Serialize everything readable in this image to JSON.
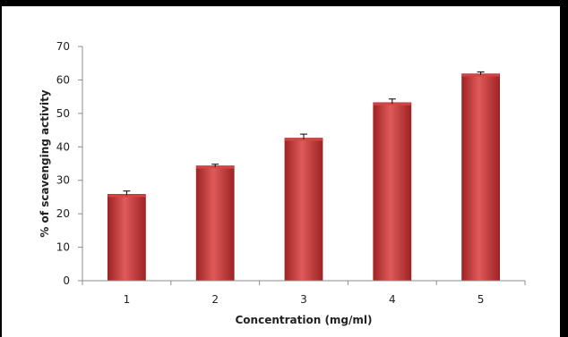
{
  "chart_data": {
    "type": "bar",
    "title": "",
    "xlabel": "Concentration (mg/ml)",
    "ylabel": "% of scavenging activity",
    "categories": [
      "1",
      "2",
      "3",
      "4",
      "5"
    ],
    "values": [
      25.8,
      34.3,
      42.6,
      53.2,
      61.8
    ],
    "error": [
      1.0,
      0.5,
      1.2,
      1.1,
      0.6
    ],
    "ylim": [
      0,
      70
    ],
    "yticks": [
      "0",
      "10",
      "20",
      "30",
      "40",
      "50",
      "60",
      "70"
    ],
    "ytick_values": [
      0,
      10,
      20,
      30,
      40,
      50,
      60,
      70
    ],
    "grid": false,
    "legend": "none",
    "colors": {
      "bar_dark": "#9e2424",
      "bar_mid": "#d64545",
      "bar_light": "#e05a5a",
      "axis": "#8c8c8c",
      "frame": "#000000"
    }
  }
}
